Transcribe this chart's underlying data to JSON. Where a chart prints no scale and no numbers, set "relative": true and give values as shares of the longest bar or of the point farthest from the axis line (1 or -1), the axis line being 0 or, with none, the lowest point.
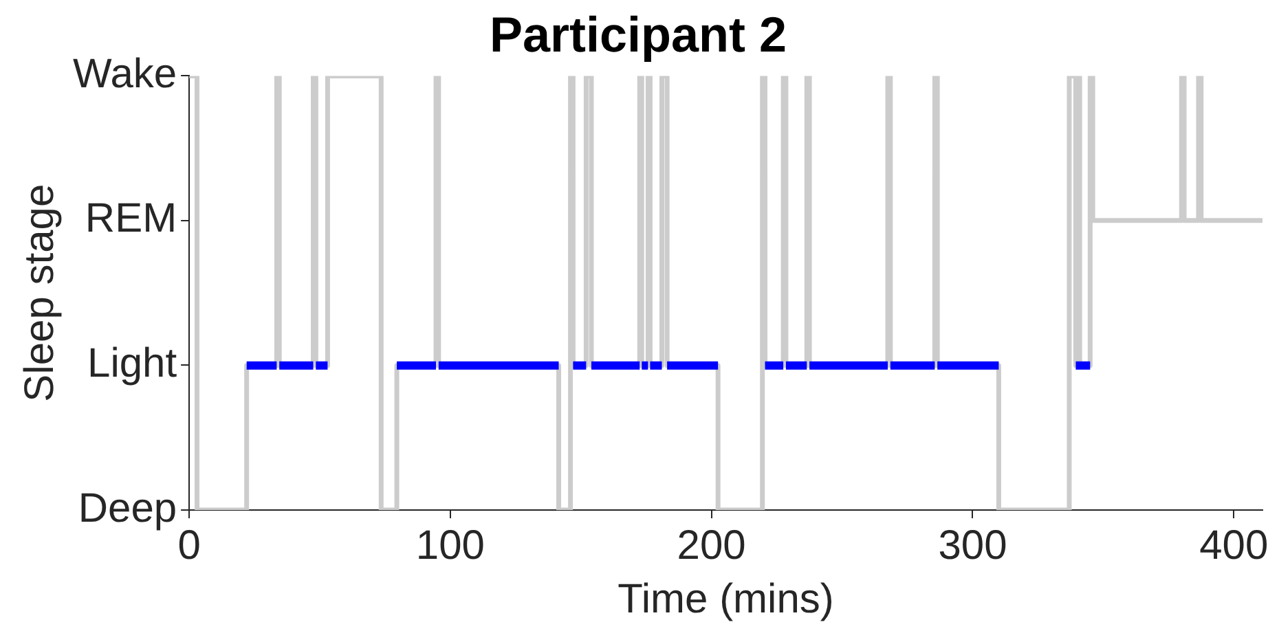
{
  "chart_data": {
    "type": "step",
    "title": "Participant 2",
    "xlabel": "Time (mins)",
    "ylabel": "Sleep stage",
    "xlim": [
      0,
      411
    ],
    "xticks": [
      0,
      100,
      200,
      300,
      400
    ],
    "relative": true,
    "y_categories": [
      "Wake",
      "REM",
      "Light",
      "Deep"
    ],
    "grid": false,
    "legend": false,
    "marker": "none",
    "series": [
      {
        "type": "step",
        "color": "#cccccc",
        "x": [
          0,
          3,
          22,
          33.5,
          34.5,
          47.5,
          48.5,
          53,
          73.5,
          79.5,
          94.5,
          95.5,
          141.5,
          146,
          147,
          152,
          154,
          172.5,
          173.3,
          175.7,
          176.5,
          181,
          183,
          202.5,
          219.5,
          220.5,
          227.5,
          228.5,
          236.5,
          237.5,
          267.5,
          268.5,
          285.5,
          286.5,
          310,
          337,
          339.5,
          340,
          341,
          345,
          346,
          380,
          381,
          386.5,
          387.5,
          411
        ],
        "values": [
          1,
          0,
          0.333,
          1,
          0.333,
          1,
          0.333,
          1,
          0,
          0.333,
          1,
          0.333,
          0,
          1,
          0.333,
          1,
          0.333,
          1,
          0.333,
          1,
          0.333,
          1,
          0.333,
          0,
          1,
          0.333,
          1,
          0.333,
          1,
          0.333,
          1,
          0.333,
          1,
          0.333,
          0,
          1,
          0.333,
          1,
          0.333,
          1,
          0.667,
          1,
          0.667,
          1,
          0.667,
          0.667
        ]
      },
      {
        "type": "line",
        "color": "#0000ff",
        "x": [
          22,
          33.5,
          null,
          34.5,
          47.5,
          null,
          48.5,
          53,
          null,
          79.5,
          94.5,
          null,
          95.5,
          141.5,
          null,
          147,
          152,
          null,
          154,
          172.5,
          null,
          173.3,
          175.7,
          null,
          176.5,
          181,
          null,
          183,
          202.5,
          null,
          220.5,
          227.5,
          null,
          228.5,
          236.5,
          null,
          237.5,
          267.5,
          null,
          268.5,
          285.5,
          null,
          286.5,
          310,
          null,
          339.5,
          345
        ],
        "values": [
          0.333,
          0.333,
          null,
          0.333,
          0.333,
          null,
          0.333,
          0.333,
          null,
          0.333,
          0.333,
          null,
          0.333,
          0.333,
          null,
          0.333,
          0.333,
          null,
          0.333,
          0.333,
          null,
          0.333,
          0.333,
          null,
          0.333,
          0.333,
          null,
          0.333,
          0.333,
          null,
          0.333,
          0.333,
          null,
          0.333,
          0.333,
          null,
          0.333,
          0.333,
          null,
          0.333,
          0.333,
          null,
          0.333,
          0.333,
          null,
          0.333,
          0.333
        ]
      }
    ]
  }
}
